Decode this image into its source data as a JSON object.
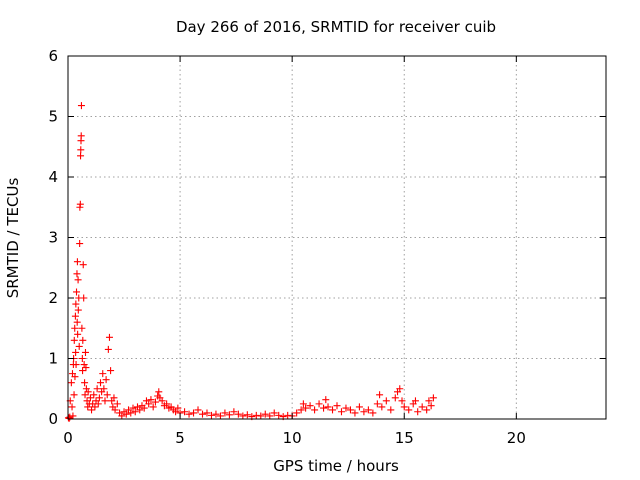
{
  "chart_data": {
    "type": "scatter",
    "title": "Day 266 of 2016, SRMTID for receiver cuib",
    "xlabel": "GPS time / hours",
    "ylabel": "SRMTID / TECUs",
    "xlim": [
      0,
      24
    ],
    "ylim": [
      0,
      6
    ],
    "xticks": [
      0,
      5,
      10,
      15,
      20
    ],
    "yticks": [
      0,
      1,
      2,
      3,
      4,
      5,
      6
    ],
    "grid": true,
    "marker": "plus",
    "color": "#ff0000",
    "series": [
      {
        "points": [
          [
            0.02,
            0.02
          ],
          [
            0.05,
            0.01
          ],
          [
            0.08,
            0.03
          ],
          [
            0.1,
            0.3
          ],
          [
            0.15,
            0.6
          ],
          [
            0.18,
            0.2
          ],
          [
            0.2,
            0.75
          ],
          [
            0.22,
            0.05
          ],
          [
            0.24,
            0.9
          ],
          [
            0.25,
            1.0
          ],
          [
            0.27,
            0.4
          ],
          [
            0.28,
            1.3
          ],
          [
            0.3,
            1.5
          ],
          [
            0.31,
            0.7
          ],
          [
            0.33,
            1.7
          ],
          [
            0.34,
            1.1
          ],
          [
            0.35,
            1.9
          ],
          [
            0.36,
            0.9
          ],
          [
            0.38,
            2.1
          ],
          [
            0.4,
            2.4
          ],
          [
            0.41,
            1.6
          ],
          [
            0.42,
            2.6
          ],
          [
            0.43,
            1.4
          ],
          [
            0.45,
            2.3
          ],
          [
            0.46,
            1.8
          ],
          [
            0.48,
            2.0
          ],
          [
            0.5,
            1.2
          ],
          [
            0.52,
            2.9
          ],
          [
            0.53,
            3.5
          ],
          [
            0.55,
            3.55
          ],
          [
            0.56,
            4.35
          ],
          [
            0.57,
            4.45
          ],
          [
            0.58,
            4.6
          ],
          [
            0.59,
            4.68
          ],
          [
            0.6,
            5.18
          ],
          [
            0.62,
            1.5
          ],
          [
            0.64,
            1.0
          ],
          [
            0.65,
            0.8
          ],
          [
            0.66,
            1.3
          ],
          [
            0.68,
            2.55
          ],
          [
            0.7,
            2.0
          ],
          [
            0.72,
            0.9
          ],
          [
            0.74,
            0.6
          ],
          [
            0.76,
            0.4
          ],
          [
            0.78,
            1.1
          ],
          [
            0.8,
            0.85
          ],
          [
            0.82,
            0.5
          ],
          [
            0.85,
            0.3
          ],
          [
            0.88,
            0.2
          ],
          [
            0.9,
            0.45
          ],
          [
            0.95,
            0.25
          ],
          [
            1.0,
            0.35
          ],
          [
            1.05,
            0.15
          ],
          [
            1.1,
            0.25
          ],
          [
            1.15,
            0.4
          ],
          [
            1.2,
            0.2
          ],
          [
            1.25,
            0.3
          ],
          [
            1.3,
            0.5
          ],
          [
            1.35,
            0.25
          ],
          [
            1.4,
            0.35
          ],
          [
            1.45,
            0.6
          ],
          [
            1.5,
            0.45
          ],
          [
            1.55,
            0.75
          ],
          [
            1.6,
            0.5
          ],
          [
            1.65,
            0.3
          ],
          [
            1.7,
            0.65
          ],
          [
            1.75,
            0.4
          ],
          [
            1.8,
            1.15
          ],
          [
            1.85,
            1.35
          ],
          [
            1.9,
            0.8
          ],
          [
            1.95,
            0.3
          ],
          [
            2.0,
            0.2
          ],
          [
            2.05,
            0.35
          ],
          [
            2.1,
            0.15
          ],
          [
            2.2,
            0.25
          ],
          [
            2.3,
            0.1
          ],
          [
            2.4,
            0.05
          ],
          [
            2.5,
            0.12
          ],
          [
            2.6,
            0.08
          ],
          [
            2.7,
            0.15
          ],
          [
            2.8,
            0.1
          ],
          [
            2.9,
            0.18
          ],
          [
            3.0,
            0.12
          ],
          [
            3.1,
            0.2
          ],
          [
            3.2,
            0.15
          ],
          [
            3.3,
            0.22
          ],
          [
            3.4,
            0.18
          ],
          [
            3.5,
            0.3
          ],
          [
            3.6,
            0.25
          ],
          [
            3.7,
            0.32
          ],
          [
            3.8,
            0.2
          ],
          [
            3.9,
            0.28
          ],
          [
            4.0,
            0.38
          ],
          [
            4.05,
            0.45
          ],
          [
            4.1,
            0.35
          ],
          [
            4.2,
            0.3
          ],
          [
            4.3,
            0.22
          ],
          [
            4.4,
            0.25
          ],
          [
            4.5,
            0.18
          ],
          [
            4.6,
            0.2
          ],
          [
            4.7,
            0.15
          ],
          [
            4.8,
            0.12
          ],
          [
            4.9,
            0.18
          ],
          [
            5.0,
            0.1
          ],
          [
            5.2,
            0.12
          ],
          [
            5.4,
            0.08
          ],
          [
            5.6,
            0.1
          ],
          [
            5.8,
            0.15
          ],
          [
            6.0,
            0.08
          ],
          [
            6.2,
            0.1
          ],
          [
            6.4,
            0.06
          ],
          [
            6.6,
            0.08
          ],
          [
            6.8,
            0.05
          ],
          [
            7.0,
            0.1
          ],
          [
            7.2,
            0.07
          ],
          [
            7.4,
            0.12
          ],
          [
            7.6,
            0.08
          ],
          [
            7.8,
            0.05
          ],
          [
            8.0,
            0.07
          ],
          [
            8.2,
            0.04
          ],
          [
            8.4,
            0.06
          ],
          [
            8.6,
            0.05
          ],
          [
            8.8,
            0.08
          ],
          [
            9.0,
            0.05
          ],
          [
            9.2,
            0.1
          ],
          [
            9.4,
            0.06
          ],
          [
            9.6,
            0.04
          ],
          [
            9.8,
            0.06
          ],
          [
            10.0,
            0.05
          ],
          [
            10.2,
            0.1
          ],
          [
            10.4,
            0.15
          ],
          [
            10.5,
            0.25
          ],
          [
            10.6,
            0.18
          ],
          [
            10.8,
            0.22
          ],
          [
            11.0,
            0.15
          ],
          [
            11.2,
            0.25
          ],
          [
            11.4,
            0.18
          ],
          [
            11.5,
            0.32
          ],
          [
            11.6,
            0.2
          ],
          [
            11.8,
            0.15
          ],
          [
            12.0,
            0.22
          ],
          [
            12.2,
            0.12
          ],
          [
            12.4,
            0.18
          ],
          [
            12.6,
            0.15
          ],
          [
            12.8,
            0.1
          ],
          [
            13.0,
            0.2
          ],
          [
            13.2,
            0.12
          ],
          [
            13.4,
            0.15
          ],
          [
            13.6,
            0.1
          ],
          [
            13.8,
            0.25
          ],
          [
            13.9,
            0.4
          ],
          [
            14.0,
            0.2
          ],
          [
            14.2,
            0.3
          ],
          [
            14.4,
            0.15
          ],
          [
            14.6,
            0.35
          ],
          [
            14.7,
            0.45
          ],
          [
            14.8,
            0.5
          ],
          [
            14.9,
            0.3
          ],
          [
            15.0,
            0.2
          ],
          [
            15.2,
            0.15
          ],
          [
            15.4,
            0.25
          ],
          [
            15.5,
            0.3
          ],
          [
            15.6,
            0.12
          ],
          [
            15.8,
            0.2
          ],
          [
            16.0,
            0.15
          ],
          [
            16.1,
            0.3
          ],
          [
            16.2,
            0.22
          ],
          [
            16.3,
            0.35
          ]
        ]
      }
    ]
  }
}
